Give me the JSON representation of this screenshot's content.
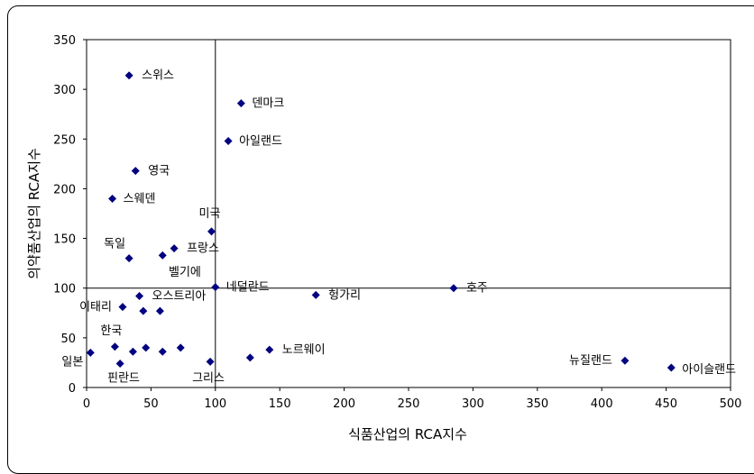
{
  "chart_data": {
    "type": "scatter",
    "xlabel": "식품산업의 RCA지수",
    "ylabel": "의약품산업의 RCA지수",
    "xlim": [
      0,
      500
    ],
    "ylim": [
      0,
      350
    ],
    "x_ticks": [
      "0",
      "50",
      "100",
      "150",
      "200",
      "250",
      "300",
      "350",
      "400",
      "450",
      "500"
    ],
    "y_ticks": [
      "0",
      "50",
      "100",
      "150",
      "200",
      "250",
      "300",
      "350"
    ],
    "reference_lines": {
      "x": 100,
      "y": 100
    },
    "grid": false,
    "marker_color": "#000080",
    "points": [
      {
        "x": 33,
        "y": 314,
        "label": "스위스"
      },
      {
        "x": 120,
        "y": 286,
        "label": "덴마크"
      },
      {
        "x": 110,
        "y": 248,
        "label": "아일랜드"
      },
      {
        "x": 38,
        "y": 218,
        "label": "영국"
      },
      {
        "x": 20,
        "y": 190,
        "label": "스웨덴"
      },
      {
        "x": 97,
        "y": 157,
        "label": "미국"
      },
      {
        "x": 68,
        "y": 140,
        "label": "프랑스"
      },
      {
        "x": 59,
        "y": 133,
        "label": ""
      },
      {
        "x": 33,
        "y": 130,
        "label": "독일"
      },
      {
        "x": 100,
        "y": 101,
        "label": "네덜란드"
      },
      {
        "x": 41,
        "y": 92,
        "label": "오스트리아"
      },
      {
        "x": 28,
        "y": 81,
        "label": "이태리"
      },
      {
        "x": 44,
        "y": 77,
        "label": ""
      },
      {
        "x": 57,
        "y": 77,
        "label": ""
      },
      {
        "x": 178,
        "y": 93,
        "label": "헝가리"
      },
      {
        "x": 285,
        "y": 100,
        "label": "호주"
      },
      {
        "x": 22,
        "y": 41,
        "label": "한국"
      },
      {
        "x": 46,
        "y": 40,
        "label": ""
      },
      {
        "x": 73,
        "y": 40,
        "label": ""
      },
      {
        "x": 142,
        "y": 38,
        "label": "노르웨이"
      },
      {
        "x": 36,
        "y": 36,
        "label": ""
      },
      {
        "x": 59,
        "y": 36,
        "label": ""
      },
      {
        "x": 3,
        "y": 35,
        "label": "일본"
      },
      {
        "x": 127,
        "y": 30,
        "label": ""
      },
      {
        "x": 26,
        "y": 24,
        "label": "핀란드"
      },
      {
        "x": 96,
        "y": 26,
        "label": "그리스"
      },
      {
        "x": 418,
        "y": 27,
        "label": "뉴질랜드"
      },
      {
        "x": 454,
        "y": 20,
        "label": "아이슬랜드"
      }
    ],
    "annotations": [
      {
        "text": "벨기에"
      }
    ]
  }
}
